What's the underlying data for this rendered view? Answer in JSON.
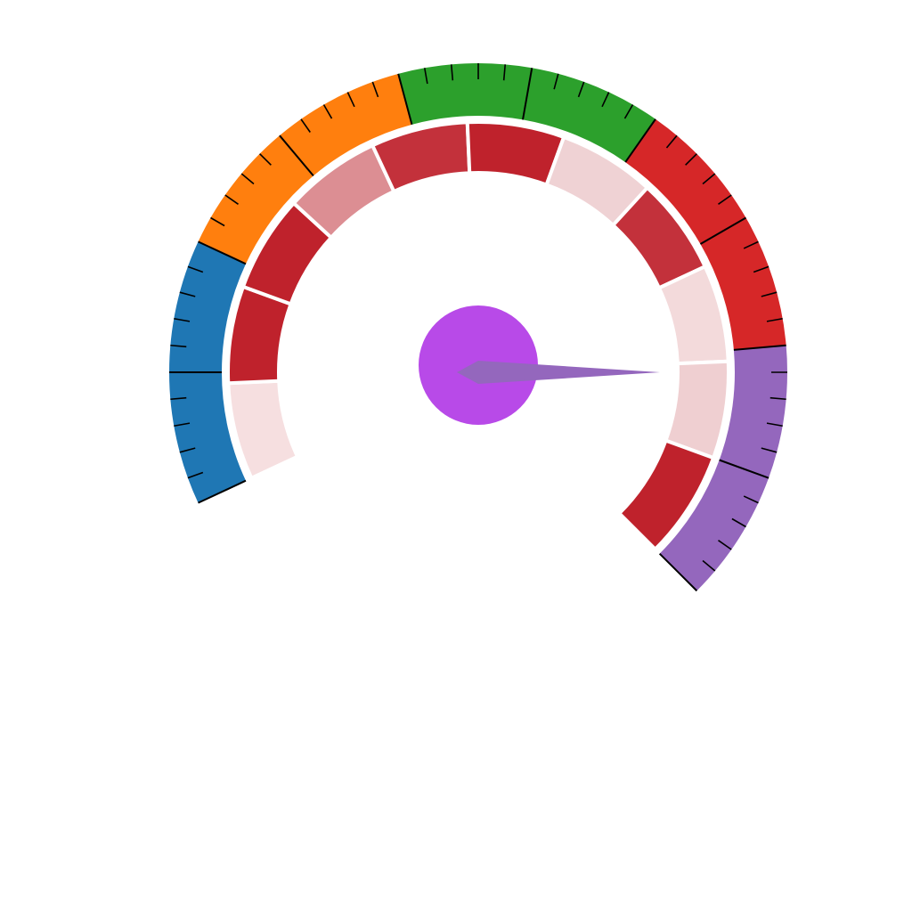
{
  "chart_data": {
    "type": "gauge",
    "range": [
      0,
      100
    ],
    "start_angle_deg": 245,
    "sweep_deg": 250,
    "bands": [
      {
        "from": 0,
        "to": 20,
        "color": "#1f77b4"
      },
      {
        "from": 20,
        "to": 40,
        "color": "#ff7f0e"
      },
      {
        "from": 40,
        "to": 60,
        "color": "#2ca02c"
      },
      {
        "from": 60,
        "to": 80,
        "color": "#d62728"
      },
      {
        "from": 80,
        "to": 100,
        "color": "#9467bd"
      }
    ],
    "ticks": {
      "major_every": 10,
      "minor_per_major": 5,
      "color": "#000000"
    },
    "inner_segments": [
      {
        "from": 0,
        "to": 9,
        "color": "#f6dfe0"
      },
      {
        "from": 9,
        "to": 18,
        "color": "#bf222c"
      },
      {
        "from": 18,
        "to": 27,
        "color": "#bf222c"
      },
      {
        "from": 27,
        "to": 36,
        "color": "#dc8e93"
      },
      {
        "from": 36,
        "to": 45,
        "color": "#c3313b"
      },
      {
        "from": 45,
        "to": 54,
        "color": "#bf222c"
      },
      {
        "from": 54,
        "to": 63,
        "color": "#efd2d4"
      },
      {
        "from": 63,
        "to": 72,
        "color": "#c3313b"
      },
      {
        "from": 72,
        "to": 81,
        "color": "#f3dadb"
      },
      {
        "from": 81,
        "to": 90,
        "color": "#efcfd1"
      },
      {
        "from": 90,
        "to": 100,
        "color": "#bf222c"
      }
    ],
    "needle": {
      "value": 82,
      "color": "#9467bd"
    },
    "hub": {
      "color": "#b84ae8"
    }
  }
}
